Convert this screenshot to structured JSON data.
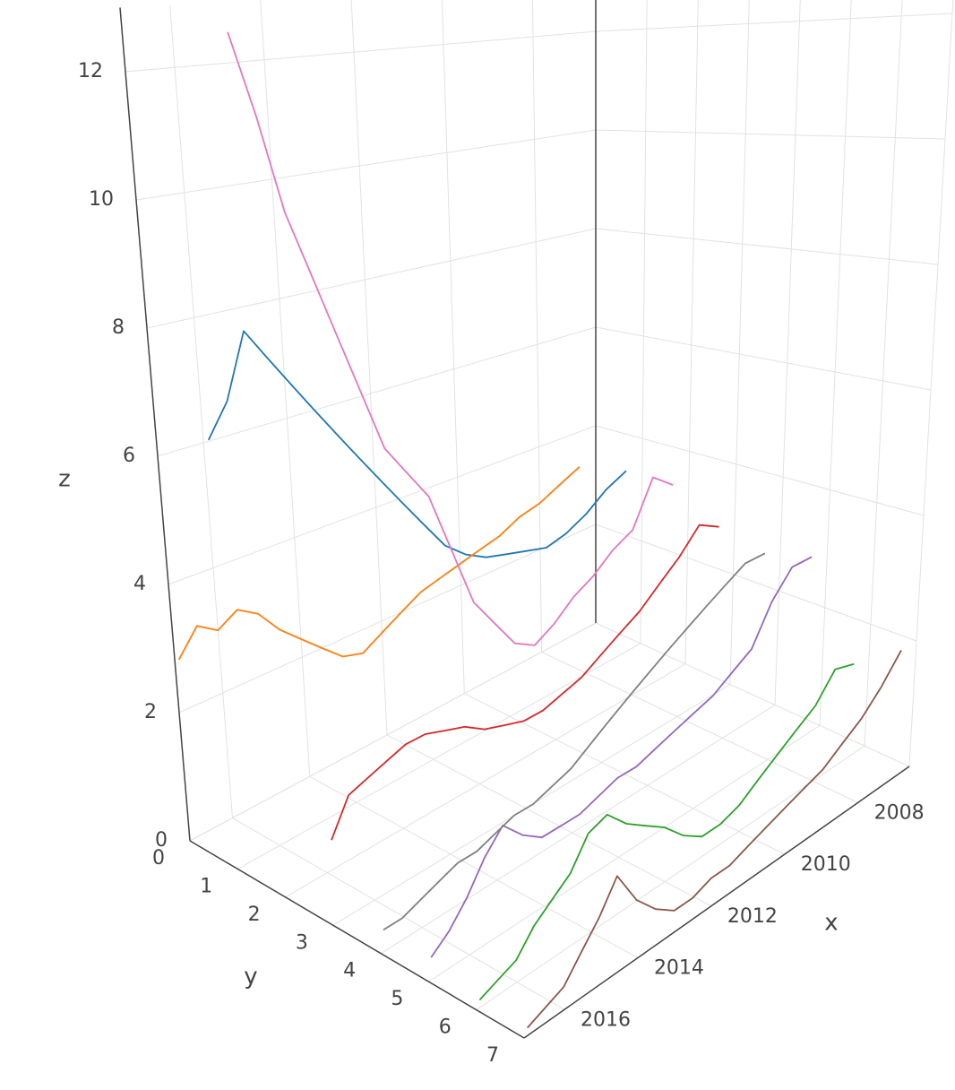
{
  "chart_data": {
    "type": "line3d",
    "xlabel": "x",
    "ylabel": "y",
    "zlabel": "z",
    "xlim": [
      2006.6,
      2017.1
    ],
    "xticks": [
      2008,
      2010,
      2012,
      2014,
      2016
    ],
    "ylim": [
      0,
      7
    ],
    "yticks": [
      0,
      1,
      2,
      3,
      4,
      5,
      6,
      7
    ],
    "zlim": [
      0,
      13
    ],
    "zticks": [
      0,
      2,
      4,
      6,
      8,
      10,
      12
    ],
    "grid": true,
    "x": [
      2007,
      2007.5,
      2008,
      2008.5,
      2009,
      2009.5,
      2010,
      2010.5,
      2011,
      2011.5,
      2012,
      2012.5,
      2013,
      2013.5,
      2014,
      2014.5,
      2015,
      2015.5,
      2016,
      2016.5,
      2017
    ],
    "series": [
      {
        "color": "#1f77b4",
        "y": 1,
        "values": [
          3.5,
          3.3,
          3.0,
          2.8,
          2.7,
          2.8,
          2.9,
          3.0,
          3.2,
          3.5,
          4.0,
          4.5,
          5.0,
          5.5,
          6.0,
          6.5,
          7.0,
          7.5,
          8.0,
          7.0,
          6.5
        ]
      },
      {
        "color": "#ff7f0e",
        "y": 0,
        "values": [
          3.3,
          3.1,
          2.9,
          2.8,
          2.6,
          2.5,
          2.4,
          2.3,
          2.2,
          2.0,
          1.8,
          1.6,
          1.7,
          2.0,
          2.3,
          2.6,
          3.0,
          3.2,
          3.0,
          3.2,
          2.8
        ]
      },
      {
        "color": "#2ca02c",
        "y": 6,
        "values": [
          1.5,
          1.6,
          1.2,
          1.0,
          0.8,
          0.6,
          0.4,
          0.3,
          0.3,
          0.5,
          0.8,
          1.0,
          1.2,
          1.5,
          1.4,
          1.0,
          0.8,
          0.6,
          0.3,
          0.2,
          0.1
        ]
      },
      {
        "color": "#d62728",
        "y": 3,
        "values": [
          3.0,
          3.2,
          2.8,
          2.5,
          2.2,
          2.0,
          1.8,
          1.6,
          1.5,
          1.4,
          1.4,
          1.5,
          1.6,
          1.8,
          1.9,
          2.0,
          2.0,
          1.9,
          1.8,
          1.7,
          1.2
        ]
      },
      {
        "color": "#9467bd",
        "y": 5,
        "values": [
          3.0,
          3.0,
          2.6,
          2.0,
          1.8,
          1.6,
          1.5,
          1.4,
          1.3,
          1.2,
          1.2,
          1.1,
          1.0,
          1.0,
          1.0,
          1.2,
          1.5,
          1.2,
          0.8,
          0.5,
          0.3
        ]
      },
      {
        "color": "#8c564b",
        "y": 7,
        "values": [
          2.0,
          1.6,
          1.3,
          1.1,
          0.9,
          0.8,
          0.7,
          0.6,
          0.5,
          0.4,
          0.4,
          0.3,
          0.3,
          0.5,
          0.8,
          1.3,
          0.9,
          0.6,
          0.3,
          0.2,
          0.1
        ]
      },
      {
        "color": "#e377c2",
        "y": 2,
        "values": [
          3.5,
          3.8,
          3.0,
          2.8,
          2.5,
          2.3,
          2.0,
          1.8,
          2.0,
          2.5,
          3.0,
          4.0,
          5.0,
          5.5,
          6.0,
          7.0,
          8.0,
          9.0,
          10.0,
          11.5,
          12.8
        ]
      },
      {
        "color": "#7f7f7f",
        "y": 4,
        "values": [
          2.8,
          2.8,
          2.6,
          2.4,
          2.2,
          2.0,
          1.8,
          1.6,
          1.4,
          1.2,
          1.0,
          0.9,
          0.8,
          0.8,
          0.7,
          0.6,
          0.6,
          0.5,
          0.4,
          0.3,
          0.3
        ]
      }
    ]
  }
}
